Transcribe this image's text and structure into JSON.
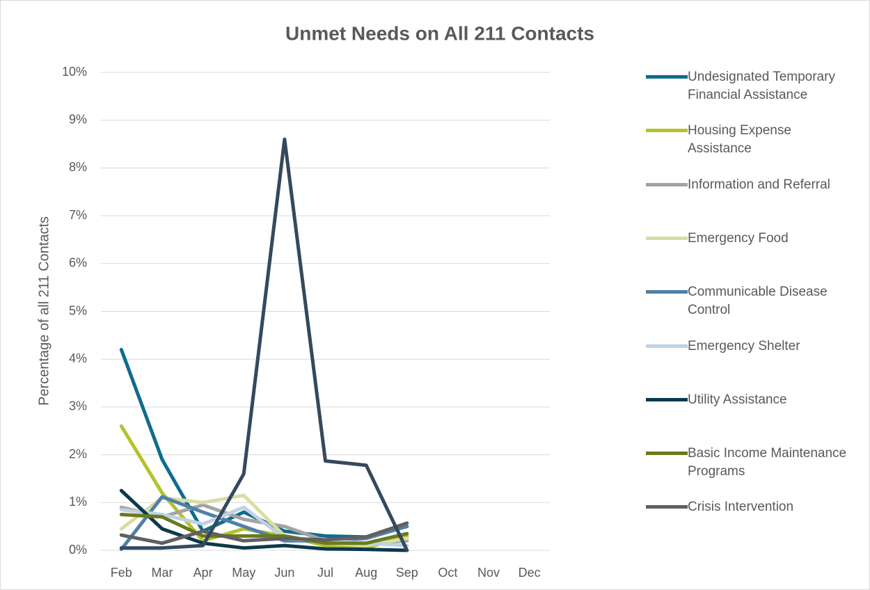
{
  "chart_data": {
    "type": "line",
    "title": "Unmet Needs on All 211 Contacts",
    "y_label": "Percentage of all 211 Contacts",
    "categories": [
      "Feb",
      "Mar",
      "Apr",
      "May",
      "Jun",
      "Jul",
      "Aug",
      "Sep",
      "Oct",
      "Nov",
      "Dec"
    ],
    "ylim": [
      0,
      10
    ],
    "yticks": [
      {
        "value": 0,
        "label": "0%"
      },
      {
        "value": 1,
        "label": "1%"
      },
      {
        "value": 2,
        "label": "2%"
      },
      {
        "value": 3,
        "label": "3%"
      },
      {
        "value": 4,
        "label": "4%"
      },
      {
        "value": 5,
        "label": "5%"
      },
      {
        "value": 6,
        "label": "6%"
      },
      {
        "value": 7,
        "label": "7%"
      },
      {
        "value": 8,
        "label": "8%"
      },
      {
        "value": 9,
        "label": "9%"
      },
      {
        "value": 10,
        "label": "10%"
      }
    ],
    "grid": true,
    "legend": "right",
    "series": [
      {
        "name": "Undesignated Temporary Financial Assistance",
        "color": "#0f6c8c",
        "values": [
          4.2,
          1.9,
          0.4,
          0.8,
          0.4,
          0.3,
          0.28,
          0.5,
          null,
          null,
          null
        ]
      },
      {
        "name": "Housing Expense Assistance",
        "color": "#b4c22c",
        "values": [
          2.6,
          1.2,
          0.2,
          0.45,
          0.3,
          0.1,
          0.05,
          0.3,
          null,
          null,
          null
        ]
      },
      {
        "name": "Information and Referral",
        "color": "#a3a3a3",
        "values": [
          0.9,
          0.7,
          0.95,
          0.65,
          0.5,
          0.2,
          0.15,
          0.2,
          null,
          null,
          null
        ]
      },
      {
        "name": "Emergency Food",
        "color": "#d8dea2",
        "values": [
          0.45,
          1.1,
          1.0,
          1.15,
          0.3,
          0.15,
          0.1,
          0.25,
          null,
          null,
          null
        ]
      },
      {
        "name": "Communicable Disease Control",
        "color": "#4f80a8",
        "values": [
          0.02,
          1.12,
          0.8,
          0.5,
          0.2,
          0.2,
          0.25,
          0.5,
          null,
          null,
          null
        ]
      },
      {
        "name": "Emergency Shelter",
        "color": "#bfd2e2",
        "values": [
          0.85,
          0.75,
          0.55,
          0.9,
          0.25,
          0.2,
          0.15,
          0.1,
          null,
          null,
          null
        ]
      },
      {
        "name": "Utility Assistance",
        "color": "#0b394c",
        "values": [
          1.25,
          0.45,
          0.15,
          0.05,
          0.1,
          0.03,
          0.02,
          0.0,
          null,
          null,
          null
        ]
      },
      {
        "name": "Basic Income Maintenance Programs",
        "color": "#6a7a1d",
        "values": [
          0.75,
          0.7,
          0.3,
          0.3,
          0.3,
          0.15,
          0.15,
          0.35,
          null,
          null,
          null
        ]
      },
      {
        "name": "Crisis Intervention",
        "color": "#606060",
        "values": [
          0.32,
          0.15,
          0.4,
          0.2,
          0.25,
          0.22,
          0.28,
          0.57,
          null,
          null,
          null
        ]
      },
      {
        "color": "#34495c",
        "values": [
          0.05,
          0.05,
          0.1,
          1.6,
          8.6,
          1.87,
          1.78,
          0.0,
          null,
          null,
          null
        ]
      }
    ]
  }
}
